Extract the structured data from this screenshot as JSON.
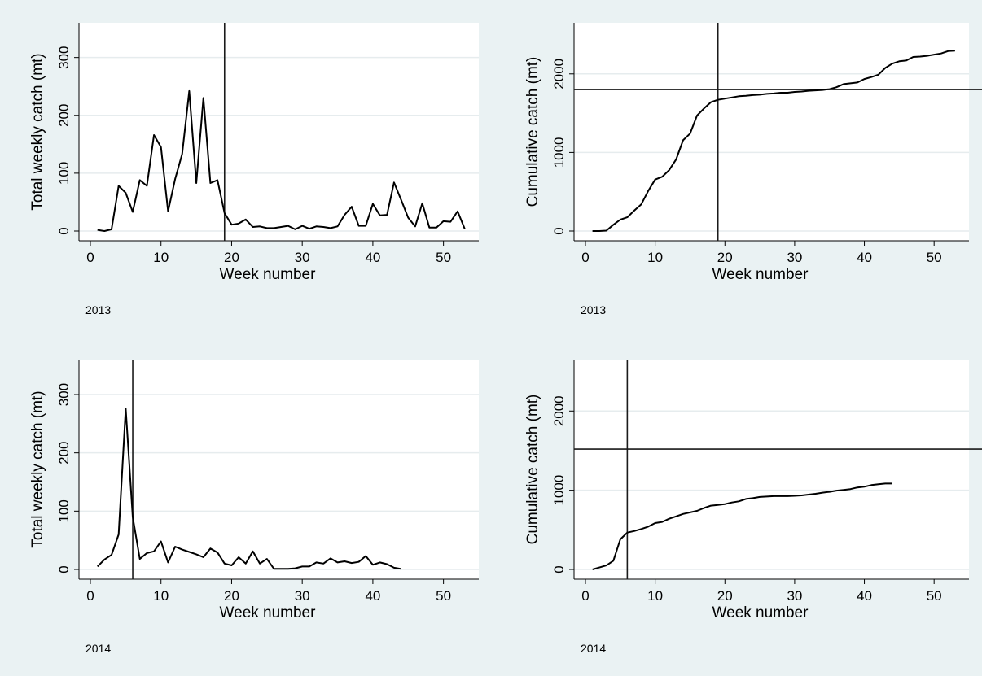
{
  "chart_data": [
    {
      "type": "line",
      "panel": "top-left",
      "caption": "2013",
      "xlabel": "Week number",
      "ylabel": "Total weekly catch (mt)",
      "xlim": [
        0,
        55
      ],
      "ylim": [
        0,
        360
      ],
      "xticks": [
        0,
        10,
        20,
        30,
        40,
        50
      ],
      "yticks": [
        0,
        100,
        200,
        300
      ],
      "grid": true,
      "vline": 19,
      "series": [
        {
          "x": [
            1,
            2,
            3,
            4,
            5,
            6,
            7,
            8,
            9,
            10,
            11,
            12,
            13,
            14,
            15,
            16,
            17,
            18,
            19,
            20,
            21,
            22,
            23,
            24,
            25,
            26,
            27,
            28,
            29,
            30,
            31,
            32,
            33,
            34,
            35,
            36,
            37,
            38,
            39,
            40,
            41,
            42,
            43,
            44,
            45,
            46,
            47,
            48,
            49,
            50,
            51,
            52,
            53
          ],
          "y": [
            2,
            0,
            3,
            78,
            66,
            33,
            88,
            78,
            166,
            145,
            34,
            90,
            133,
            242,
            83,
            230,
            83,
            88,
            31,
            11,
            13,
            20,
            7,
            8,
            5,
            5,
            7,
            9,
            3,
            9,
            4,
            8,
            7,
            5,
            8,
            28,
            42,
            9,
            9,
            47,
            27,
            28,
            84,
            54,
            23,
            8,
            48,
            6,
            6,
            17,
            16,
            34,
            4
          ]
        }
      ]
    },
    {
      "type": "line",
      "panel": "top-right",
      "caption": "2013",
      "xlabel": "Week number",
      "ylabel": "Cumulative catch (mt)",
      "xlim": [
        0,
        55
      ],
      "ylim": [
        0,
        2650
      ],
      "xticks": [
        0,
        10,
        20,
        30,
        40,
        50
      ],
      "yticks": [
        0,
        1000,
        2000
      ],
      "grid": true,
      "vline": 19,
      "hline": 1800,
      "series": [
        {
          "x": [
            1,
            2,
            3,
            4,
            5,
            6,
            7,
            8,
            9,
            10,
            11,
            12,
            13,
            14,
            15,
            16,
            17,
            18,
            19,
            20,
            21,
            22,
            23,
            24,
            25,
            26,
            27,
            28,
            29,
            30,
            31,
            32,
            33,
            34,
            35,
            36,
            37,
            38,
            39,
            40,
            41,
            42,
            43,
            44,
            45,
            46,
            47,
            48,
            49,
            50,
            51,
            52,
            53
          ],
          "y": [
            0,
            0,
            5,
            80,
            145,
            175,
            260,
            340,
            510,
            655,
            690,
            775,
            910,
            1155,
            1240,
            1470,
            1560,
            1640,
            1670,
            1685,
            1700,
            1715,
            1720,
            1730,
            1735,
            1745,
            1750,
            1760,
            1760,
            1770,
            1775,
            1785,
            1790,
            1795,
            1805,
            1830,
            1870,
            1880,
            1890,
            1935,
            1960,
            1990,
            2075,
            2130,
            2160,
            2170,
            2215,
            2220,
            2230,
            2245,
            2260,
            2290,
            2295
          ]
        }
      ]
    },
    {
      "type": "line",
      "panel": "bottom-left",
      "caption": "2014",
      "xlabel": "Week number",
      "ylabel": "Total weekly catch (mt)",
      "xlim": [
        0,
        55
      ],
      "ylim": [
        0,
        360
      ],
      "xticks": [
        0,
        10,
        20,
        30,
        40,
        50
      ],
      "yticks": [
        0,
        100,
        200,
        300
      ],
      "grid": true,
      "vline": 6,
      "series": [
        {
          "x": [
            1,
            2,
            3,
            4,
            5,
            6,
            7,
            8,
            9,
            10,
            11,
            12,
            13,
            14,
            15,
            16,
            17,
            18,
            19,
            20,
            21,
            22,
            23,
            24,
            25,
            26,
            27,
            28,
            29,
            30,
            31,
            32,
            33,
            34,
            35,
            36,
            37,
            38,
            39,
            40,
            41,
            42,
            43,
            44
          ],
          "y": [
            5,
            17,
            25,
            60,
            276,
            90,
            18,
            28,
            31,
            48,
            12,
            39,
            34,
            30,
            26,
            21,
            36,
            29,
            10,
            7,
            21,
            10,
            31,
            10,
            18,
            1,
            1,
            1,
            2,
            5,
            5,
            12,
            10,
            19,
            12,
            14,
            11,
            13,
            23,
            8,
            12,
            9,
            3,
            1
          ]
        }
      ]
    },
    {
      "type": "line",
      "panel": "bottom-right",
      "caption": "2014",
      "xlabel": "Week number",
      "ylabel": "Cumulative catch (mt)",
      "xlim": [
        0,
        55
      ],
      "ylim": [
        0,
        2650
      ],
      "xticks": [
        0,
        10,
        20,
        30,
        40,
        50
      ],
      "yticks": [
        0,
        1000,
        2000
      ],
      "grid": true,
      "vline": 6,
      "hline": 1520,
      "series": [
        {
          "x": [
            1,
            2,
            3,
            4,
            5,
            6,
            7,
            8,
            9,
            10,
            11,
            12,
            13,
            14,
            15,
            16,
            17,
            18,
            19,
            20,
            21,
            22,
            23,
            24,
            25,
            26,
            27,
            28,
            29,
            30,
            31,
            32,
            33,
            34,
            35,
            36,
            37,
            38,
            39,
            40,
            41,
            42,
            43,
            44
          ],
          "y": [
            0,
            25,
            50,
            110,
            380,
            465,
            485,
            510,
            540,
            585,
            600,
            640,
            670,
            700,
            720,
            740,
            775,
            805,
            815,
            825,
            845,
            860,
            890,
            900,
            915,
            920,
            925,
            925,
            925,
            930,
            935,
            945,
            955,
            970,
            980,
            995,
            1005,
            1015,
            1035,
            1045,
            1065,
            1075,
            1085,
            1085
          ]
        }
      ]
    }
  ]
}
